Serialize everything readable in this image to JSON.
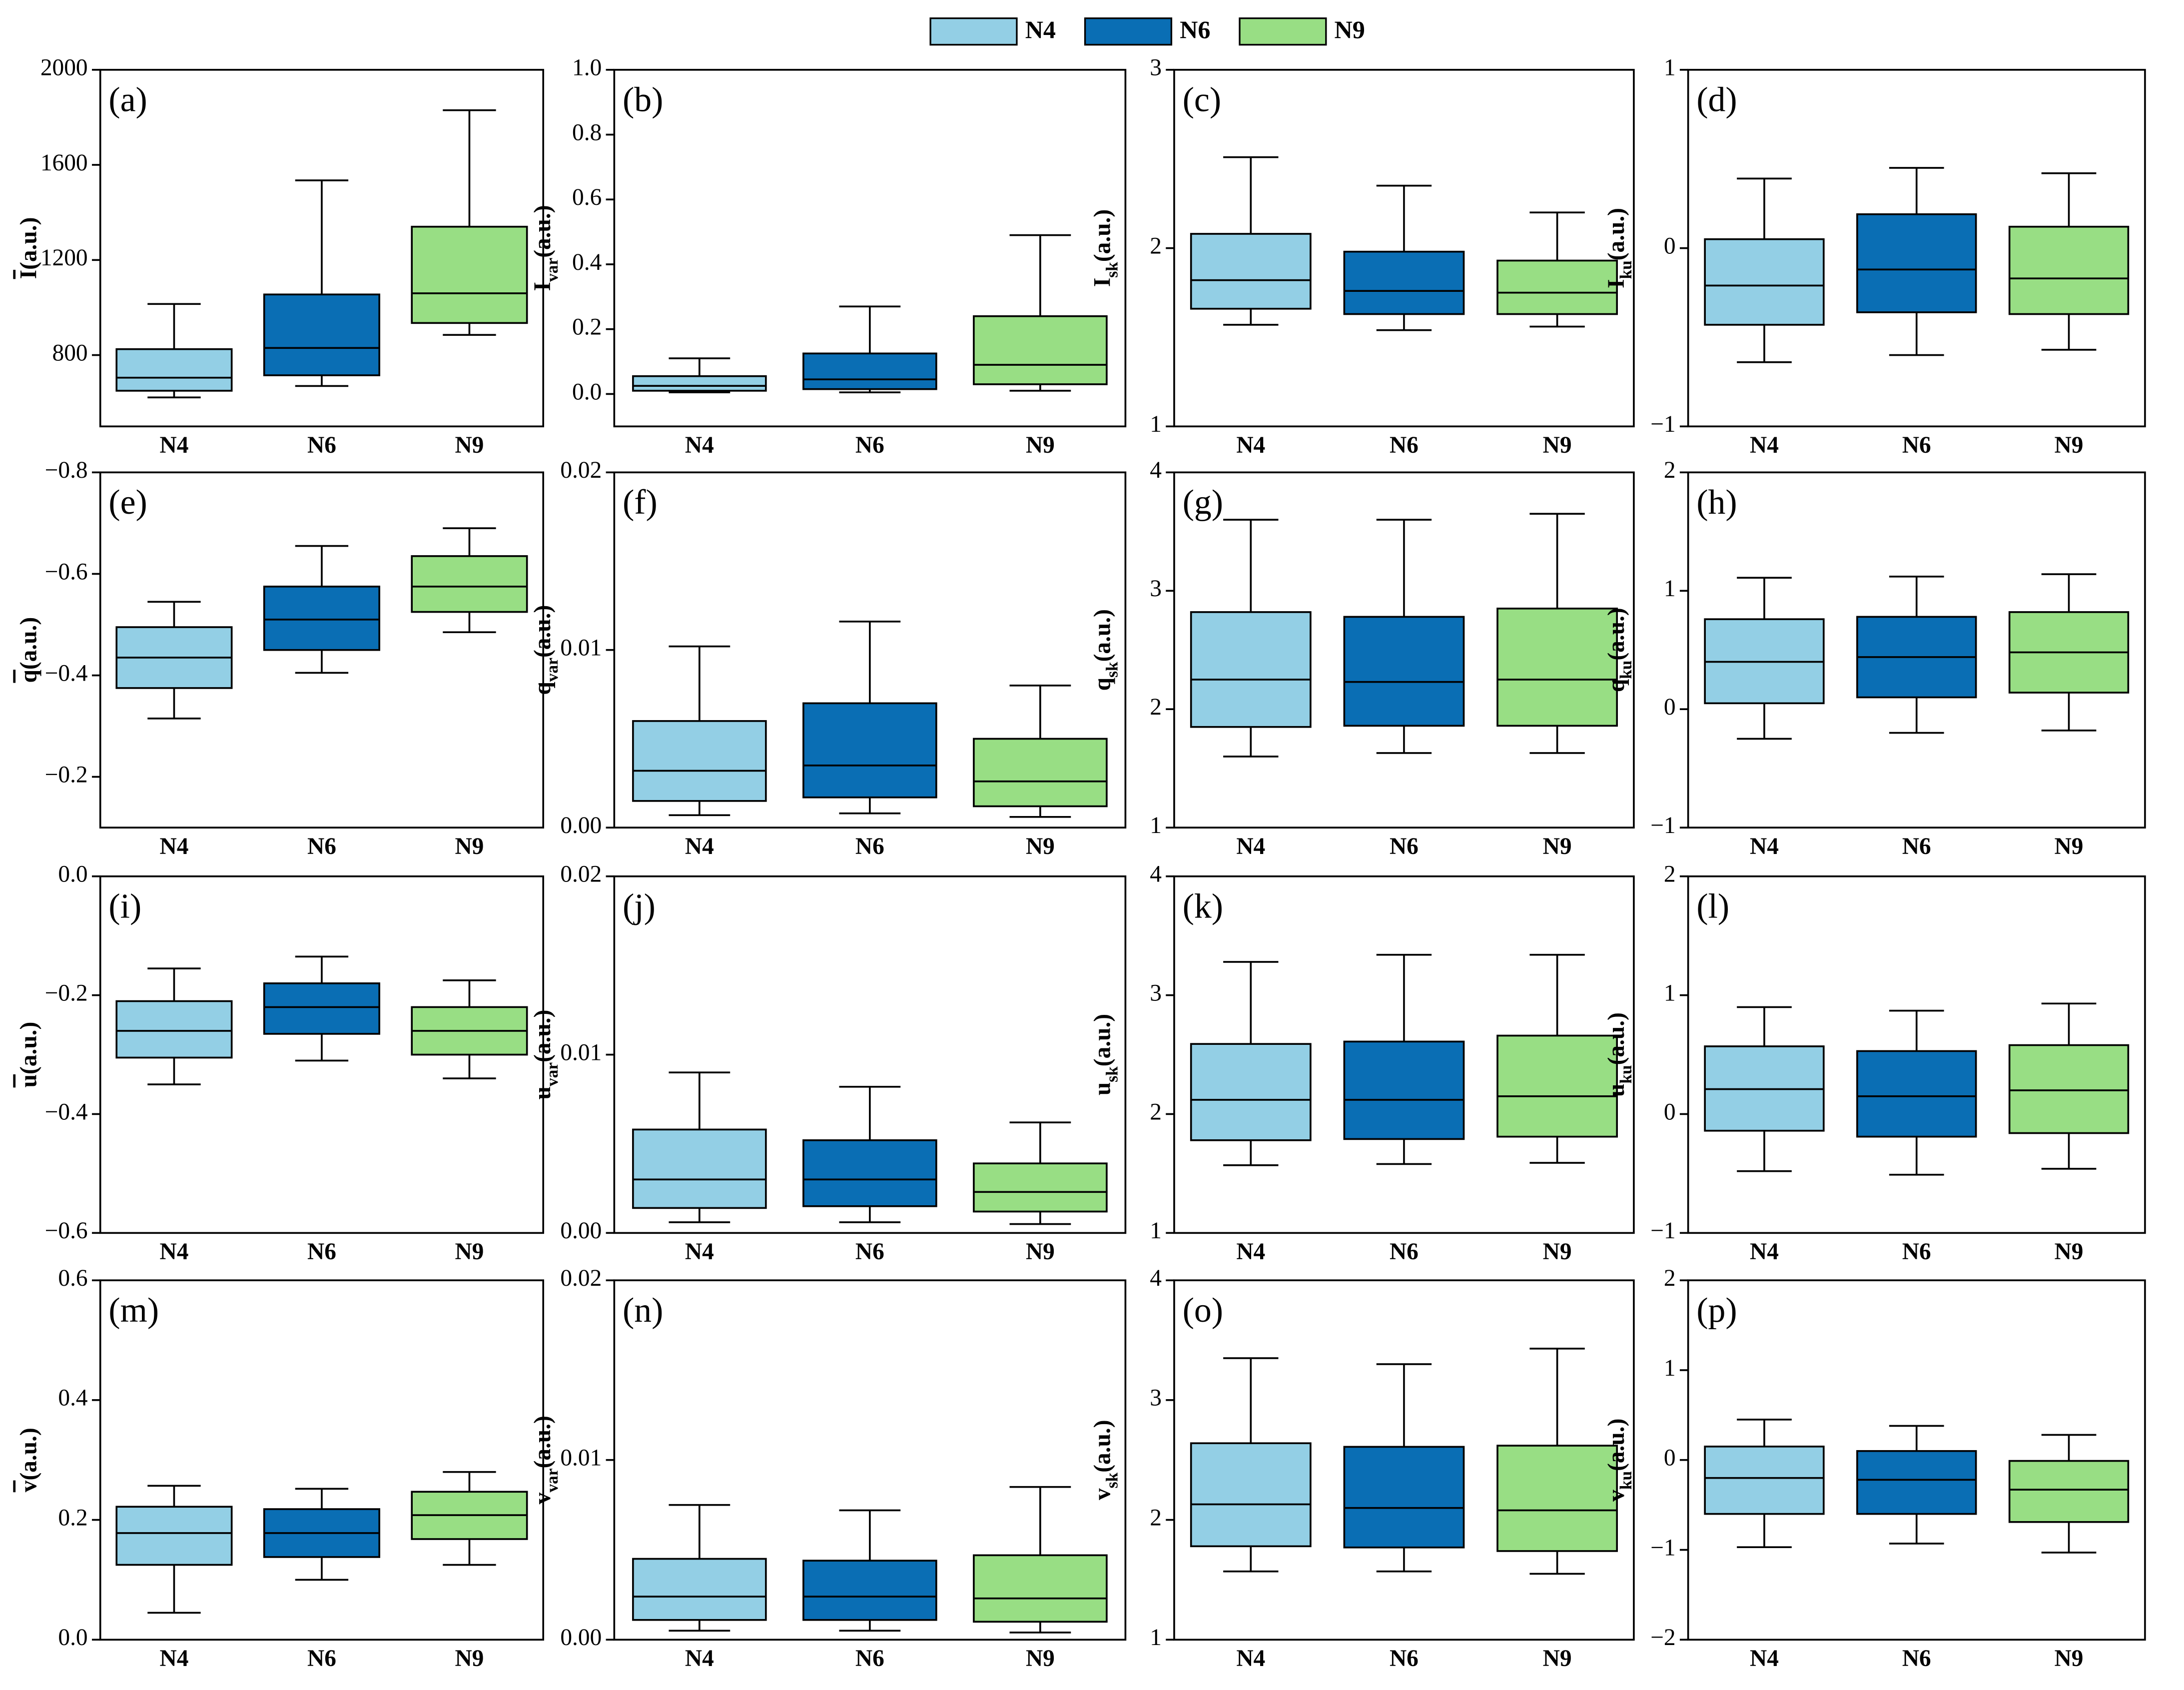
{
  "legend": {
    "entries": [
      {
        "name": "N4",
        "color": "#93cfe5"
      },
      {
        "name": "N6",
        "color": "#0a6eb4"
      },
      {
        "name": "N9",
        "color": "#98de84"
      }
    ]
  },
  "chart_data": [
    {
      "type": "box",
      "label": "(a)",
      "ylabel": {
        "symbol": "I",
        "overline": true,
        "unit": "(a.u.)"
      },
      "categories": [
        "N4",
        "N6",
        "N9"
      ],
      "boxes": [
        [
          622,
          650,
          705,
          825,
          1015
        ],
        [
          670,
          715,
          830,
          1055,
          1535
        ],
        [
          885,
          935,
          1060,
          1340,
          1830
        ]
      ],
      "ylim": [
        500,
        2000
      ],
      "yticks": [
        800,
        1200,
        1600,
        2000
      ]
    },
    {
      "type": "box",
      "label": "(b)",
      "ylabel": {
        "symbol": "I",
        "sub": "var",
        "unit": "(a.u.)"
      },
      "categories": [
        "N4",
        "N6",
        "N9"
      ],
      "boxes": [
        [
          0.005,
          0.01,
          0.025,
          0.055,
          0.11
        ],
        [
          0.005,
          0.015,
          0.045,
          0.125,
          0.27
        ],
        [
          0.01,
          0.03,
          0.09,
          0.24,
          0.49
        ]
      ],
      "ylim": [
        -0.1,
        1.0
      ],
      "yticks": [
        {
          "value": 0,
          "label": "0.0"
        },
        0.2,
        0.4,
        0.6,
        0.8,
        {
          "value": 1,
          "label": "1.0"
        }
      ]
    },
    {
      "type": "box",
      "label": "(c)",
      "ylabel": {
        "symbol": "I",
        "sub": "sk",
        "unit": "(a.u.)"
      },
      "categories": [
        "N4",
        "N6",
        "N9"
      ],
      "boxes": [
        [
          1.57,
          1.66,
          1.82,
          2.08,
          2.51
        ],
        [
          1.54,
          1.63,
          1.76,
          1.98,
          2.35
        ],
        [
          1.56,
          1.63,
          1.75,
          1.93,
          2.2
        ]
      ],
      "ylim": [
        1,
        3
      ],
      "yticks": [
        1,
        2,
        3
      ]
    },
    {
      "type": "box",
      "label": "(d)",
      "ylabel": {
        "symbol": "I",
        "sub": "ku",
        "unit": "(a.u.)"
      },
      "categories": [
        "N4",
        "N6",
        "N9"
      ],
      "boxes": [
        [
          -0.64,
          -0.43,
          -0.21,
          0.05,
          0.39
        ],
        [
          -0.6,
          -0.36,
          -0.12,
          0.19,
          0.45
        ],
        [
          -0.57,
          -0.37,
          -0.17,
          0.12,
          0.42
        ]
      ],
      "ylim": [
        -1,
        1
      ],
      "yticks": [
        {
          "value": -1,
          "label": "−1"
        },
        0,
        1
      ]
    },
    {
      "type": "box",
      "label": "(e)",
      "ylabel": {
        "symbol": "q",
        "overline": true,
        "unit": "(a.u.)"
      },
      "categories": [
        "N4",
        "N6",
        "N9"
      ],
      "boxes": [
        [
          -0.545,
          -0.495,
          -0.435,
          -0.375,
          -0.315
        ],
        [
          -0.655,
          -0.575,
          -0.51,
          -0.45,
          -0.405
        ],
        [
          -0.69,
          -0.635,
          -0.575,
          -0.525,
          -0.485
        ]
      ],
      "ylim": [
        -0.1,
        -0.8
      ],
      "yticks": [
        {
          "value": -0.8,
          "label": "−0.8"
        },
        {
          "value": -0.6,
          "label": "−0.6"
        },
        {
          "value": -0.4,
          "label": "−0.4"
        },
        {
          "value": -0.2,
          "label": "−0.2"
        }
      ]
    },
    {
      "type": "box",
      "label": "(f)",
      "ylabel": {
        "symbol": "q",
        "sub": "var",
        "unit": "(a.u.)"
      },
      "categories": [
        "N4",
        "N6",
        "N9"
      ],
      "boxes": [
        [
          0.0007,
          0.0015,
          0.0032,
          0.006,
          0.0102
        ],
        [
          0.0008,
          0.0017,
          0.0035,
          0.007,
          0.0116
        ],
        [
          0.0006,
          0.0012,
          0.0026,
          0.005,
          0.008
        ]
      ],
      "ylim": [
        0,
        0.02
      ],
      "yticks": [
        {
          "value": 0,
          "label": "0.00"
        },
        0.01,
        0.02
      ]
    },
    {
      "type": "box",
      "label": "(g)",
      "ylabel": {
        "symbol": "q",
        "sub": "sk",
        "unit": "(a.u.)"
      },
      "categories": [
        "N4",
        "N6",
        "N9"
      ],
      "boxes": [
        [
          1.6,
          1.85,
          2.25,
          2.82,
          3.6
        ],
        [
          1.63,
          1.86,
          2.23,
          2.78,
          3.6
        ],
        [
          1.63,
          1.86,
          2.25,
          2.85,
          3.65
        ]
      ],
      "ylim": [
        1,
        4
      ],
      "yticks": [
        1,
        2,
        3,
        4
      ]
    },
    {
      "type": "box",
      "label": "(h)",
      "ylabel": {
        "symbol": "q",
        "sub": "ku",
        "unit": "(a.u.)"
      },
      "categories": [
        "N4",
        "N6",
        "N9"
      ],
      "boxes": [
        [
          -0.25,
          0.05,
          0.4,
          0.76,
          1.11
        ],
        [
          -0.2,
          0.1,
          0.44,
          0.78,
          1.12
        ],
        [
          -0.18,
          0.14,
          0.48,
          0.82,
          1.14
        ]
      ],
      "ylim": [
        -1,
        2
      ],
      "yticks": [
        {
          "value": -1,
          "label": "−1"
        },
        0,
        1,
        2
      ]
    },
    {
      "type": "box",
      "label": "(i)",
      "ylabel": {
        "symbol": "u",
        "overline": true,
        "unit": "(a.u.)"
      },
      "categories": [
        "N4",
        "N6",
        "N9"
      ],
      "boxes": [
        [
          -0.35,
          -0.305,
          -0.26,
          -0.21,
          -0.155
        ],
        [
          -0.31,
          -0.265,
          -0.22,
          -0.18,
          -0.135
        ],
        [
          -0.34,
          -0.3,
          -0.26,
          -0.22,
          -0.175
        ]
      ],
      "ylim": [
        -0.6,
        0
      ],
      "yticks": [
        {
          "value": -0.6,
          "label": "−0.6"
        },
        {
          "value": -0.4,
          "label": "−0.4"
        },
        {
          "value": -0.2,
          "label": "−0.2"
        },
        {
          "value": 0,
          "label": "0.0"
        }
      ]
    },
    {
      "type": "box",
      "label": "(j)",
      "ylabel": {
        "symbol": "u",
        "sub": "var",
        "unit": "(a.u.)"
      },
      "categories": [
        "N4",
        "N6",
        "N9"
      ],
      "boxes": [
        [
          0.0006,
          0.0014,
          0.003,
          0.0058,
          0.009
        ],
        [
          0.0006,
          0.0015,
          0.003,
          0.0052,
          0.0082
        ],
        [
          0.0005,
          0.0012,
          0.0023,
          0.0039,
          0.0062
        ]
      ],
      "ylim": [
        0,
        0.02
      ],
      "yticks": [
        {
          "value": 0,
          "label": "0.00"
        },
        0.01,
        0.02
      ]
    },
    {
      "type": "box",
      "label": "(k)",
      "ylabel": {
        "symbol": "u",
        "sub": "sk",
        "unit": "(a.u.)"
      },
      "categories": [
        "N4",
        "N6",
        "N9"
      ],
      "boxes": [
        [
          1.57,
          1.78,
          2.12,
          2.59,
          3.28
        ],
        [
          1.58,
          1.79,
          2.12,
          2.61,
          3.34
        ],
        [
          1.59,
          1.81,
          2.15,
          2.66,
          3.34
        ]
      ],
      "ylim": [
        1,
        4
      ],
      "yticks": [
        1,
        2,
        3,
        4
      ]
    },
    {
      "type": "box",
      "label": "(l)",
      "ylabel": {
        "symbol": "u",
        "sub": "ku",
        "unit": "(a.u.)"
      },
      "categories": [
        "N4",
        "N6",
        "N9"
      ],
      "boxes": [
        [
          -0.48,
          -0.14,
          0.21,
          0.57,
          0.9
        ],
        [
          -0.51,
          -0.19,
          0.15,
          0.53,
          0.87
        ],
        [
          -0.46,
          -0.16,
          0.2,
          0.58,
          0.93
        ]
      ],
      "ylim": [
        -1,
        2
      ],
      "yticks": [
        {
          "value": -1,
          "label": "−1"
        },
        0,
        1,
        2
      ]
    },
    {
      "type": "box",
      "label": "(m)",
      "ylabel": {
        "symbol": "v",
        "overline": true,
        "unit": "(a.u.)"
      },
      "categories": [
        "N4",
        "N6",
        "N9"
      ],
      "boxes": [
        [
          0.045,
          0.125,
          0.178,
          0.222,
          0.257
        ],
        [
          0.1,
          0.138,
          0.178,
          0.218,
          0.252
        ],
        [
          0.125,
          0.168,
          0.208,
          0.247,
          0.28
        ]
      ],
      "ylim": [
        0,
        0.6
      ],
      "yticks": [
        {
          "value": 0,
          "label": "0.0"
        },
        0.2,
        0.4,
        0.6
      ]
    },
    {
      "type": "box",
      "label": "(n)",
      "ylabel": {
        "symbol": "v",
        "sub": "var",
        "unit": "(a.u.)"
      },
      "categories": [
        "N4",
        "N6",
        "N9"
      ],
      "boxes": [
        [
          0.0005,
          0.0011,
          0.0024,
          0.0045,
          0.0075
        ],
        [
          0.0005,
          0.0011,
          0.0024,
          0.0044,
          0.0072
        ],
        [
          0.0004,
          0.001,
          0.0023,
          0.0047,
          0.0085
        ]
      ],
      "ylim": [
        0,
        0.02
      ],
      "yticks": [
        {
          "value": 0,
          "label": "0.00"
        },
        0.01,
        0.02
      ]
    },
    {
      "type": "box",
      "label": "(o)",
      "ylabel": {
        "symbol": "v",
        "sub": "sk",
        "unit": "(a.u.)"
      },
      "categories": [
        "N4",
        "N6",
        "N9"
      ],
      "boxes": [
        [
          1.57,
          1.78,
          2.13,
          2.64,
          3.35
        ],
        [
          1.57,
          1.77,
          2.1,
          2.61,
          3.3
        ],
        [
          1.55,
          1.74,
          2.08,
          2.62,
          3.43
        ]
      ],
      "ylim": [
        1,
        4
      ],
      "yticks": [
        1,
        2,
        3,
        4
      ]
    },
    {
      "type": "box",
      "label": "(p)",
      "ylabel": {
        "symbol": "v",
        "sub": "ku",
        "unit": "(a.u.)"
      },
      "categories": [
        "N4",
        "N6",
        "N9"
      ],
      "boxes": [
        [
          -0.97,
          -0.6,
          -0.2,
          0.15,
          0.45
        ],
        [
          -0.93,
          -0.6,
          -0.22,
          0.1,
          0.38
        ],
        [
          -1.03,
          -0.69,
          -0.33,
          -0.01,
          0.28
        ]
      ],
      "ylim": [
        -2,
        2
      ],
      "yticks": [
        {
          "value": -2,
          "label": "−2"
        },
        {
          "value": -1,
          "label": "−1"
        },
        0,
        1,
        2
      ]
    }
  ]
}
